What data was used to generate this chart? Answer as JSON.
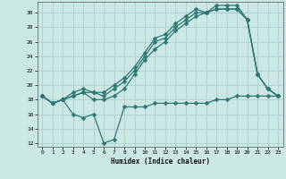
{
  "xlabel": "Humidex (Indice chaleur)",
  "bg_color": "#cce8e5",
  "grid_color": "#aacfcc",
  "line_color": "#2d7873",
  "xlim": [
    -0.5,
    23.5
  ],
  "ylim": [
    11.5,
    31.5
  ],
  "xticks": [
    0,
    1,
    2,
    3,
    4,
    5,
    6,
    7,
    8,
    9,
    10,
    11,
    12,
    13,
    14,
    15,
    16,
    17,
    18,
    19,
    20,
    21,
    22,
    23
  ],
  "yticks": [
    12,
    14,
    16,
    18,
    20,
    22,
    24,
    26,
    28,
    30
  ],
  "series1_x": [
    0,
    1,
    2,
    3,
    4,
    5,
    6,
    7,
    8,
    9,
    10,
    11,
    12,
    13,
    14,
    15,
    16,
    17,
    18,
    19,
    20,
    21,
    22,
    23
  ],
  "series1_y": [
    18.5,
    17.5,
    18.0,
    19.0,
    19.5,
    19.0,
    19.0,
    20.0,
    21.0,
    22.5,
    24.5,
    26.5,
    27.0,
    28.5,
    29.5,
    30.5,
    30.0,
    31.0,
    31.0,
    31.0,
    29.0,
    21.5,
    19.5,
    18.5
  ],
  "series2_x": [
    0,
    1,
    2,
    3,
    4,
    5,
    6,
    7,
    8,
    9,
    10,
    11,
    12,
    13,
    14,
    15,
    16,
    17,
    18,
    19,
    20,
    21,
    22,
    23
  ],
  "series2_y": [
    18.5,
    17.5,
    18.0,
    18.5,
    19.0,
    19.0,
    18.5,
    19.5,
    20.5,
    22.0,
    24.0,
    26.0,
    26.5,
    28.0,
    29.0,
    30.0,
    30.0,
    30.5,
    30.5,
    30.5,
    29.0,
    21.5,
    19.5,
    18.5
  ],
  "series3_x": [
    0,
    1,
    2,
    3,
    4,
    5,
    6,
    7,
    8,
    9,
    10,
    11,
    12,
    13,
    14,
    15,
    16,
    17,
    18,
    19,
    20,
    21,
    22,
    23
  ],
  "series3_y": [
    18.5,
    17.5,
    18.0,
    18.5,
    19.0,
    18.0,
    18.0,
    18.5,
    19.5,
    21.5,
    23.5,
    25.0,
    26.0,
    27.5,
    28.5,
    29.5,
    30.0,
    30.5,
    30.5,
    30.5,
    29.0,
    21.5,
    19.5,
    18.5
  ],
  "series4_x": [
    0,
    1,
    2,
    3,
    4,
    5,
    6,
    7,
    8,
    9,
    10,
    11,
    12,
    13,
    14,
    15,
    16,
    17,
    18,
    19,
    20,
    21,
    22,
    23
  ],
  "series4_y": [
    18.5,
    17.5,
    18.0,
    16.0,
    15.5,
    16.0,
    12.0,
    12.5,
    17.0,
    17.0,
    17.0,
    17.5,
    17.5,
    17.5,
    17.5,
    17.5,
    17.5,
    18.0,
    18.0,
    18.5,
    18.5,
    18.5,
    18.5,
    18.5
  ]
}
